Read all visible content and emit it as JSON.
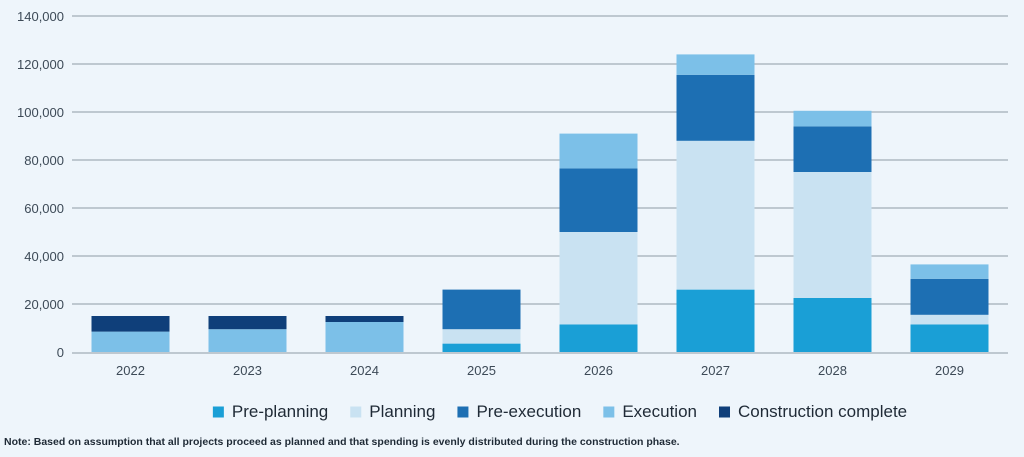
{
  "chart_data": {
    "type": "bar",
    "stacked": true,
    "categories": [
      "2022",
      "2023",
      "2024",
      "2025",
      "2026",
      "2027",
      "2028",
      "2029"
    ],
    "series": [
      {
        "name": "Pre-planning",
        "color": "#1a9fd6",
        "values": [
          0,
          0,
          0,
          3500,
          11500,
          26000,
          22500,
          11500
        ]
      },
      {
        "name": "Planning",
        "color": "#c9e2f2",
        "values": [
          0,
          0,
          0,
          6000,
          38500,
          62000,
          52500,
          4000
        ]
      },
      {
        "name": "Pre-execution",
        "color": "#1d6fb3",
        "values": [
          0,
          0,
          0,
          16500,
          26500,
          27500,
          19000,
          15000
        ]
      },
      {
        "name": "Execution",
        "color": "#7cc0e8",
        "values": [
          8500,
          9500,
          12500,
          0,
          14500,
          8500,
          6500,
          6000
        ]
      },
      {
        "name": "Construction complete",
        "color": "#0f3f7a",
        "values": [
          6500,
          5500,
          2500,
          0,
          0,
          0,
          0,
          0
        ]
      }
    ],
    "yticks": [
      "0",
      "20,000",
      "40,000",
      "60,000",
      "80,000",
      "100,000",
      "120,000",
      "140,000"
    ],
    "ylim": [
      0,
      140000
    ],
    "grid": true,
    "legend_position": "bottom"
  },
  "note": "Note: Based on assumption that all projects proceed as planned and that spending is evenly distributed during the construction phase."
}
